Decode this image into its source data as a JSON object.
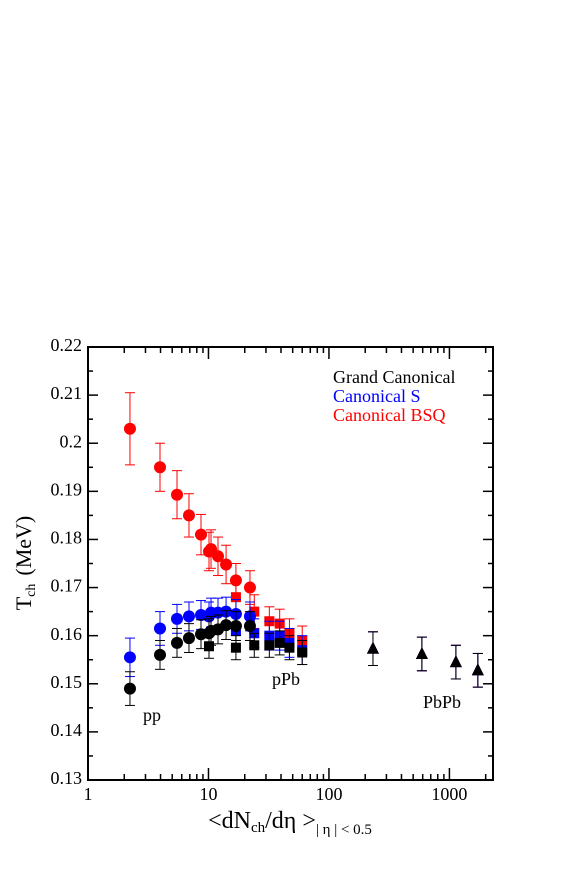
{
  "chart_data": {
    "type": "scatter",
    "x_scale": "log",
    "xlim": [
      1,
      2300
    ],
    "ylim": [
      0.13,
      0.22
    ],
    "xticks": [
      1,
      10,
      100,
      1000
    ],
    "yticks": [
      0.13,
      0.14,
      0.15,
      0.16,
      0.17,
      0.18,
      0.19,
      0.2,
      0.21,
      0.22
    ],
    "y_label": "T",
    "y_label_sub": "ch",
    "y_label_unit": "(MeV)",
    "x_label": "<dN",
    "x_label_sub": "ch",
    "x_label_mid": "/dη >",
    "x_label_range": "| η | < 0.5",
    "annotations": [
      "pp",
      "pPb",
      "PbPb"
    ],
    "legend": "top-right",
    "series": [
      {
        "name": "Canonical BSQ",
        "color": "#ff0000",
        "x": [
          2.23,
          3.96,
          5.48,
          6.89,
          8.67,
          10.1,
          10.5,
          12.0,
          14.0,
          16.9,
          22.1,
          16.9,
          24,
          32,
          39,
          47,
          60,
          232,
          591,
          1132,
          1722
        ],
        "values": [
          0.203,
          0.195,
          0.1893,
          0.185,
          0.181,
          0.1775,
          0.178,
          0.1765,
          0.1748,
          0.1715,
          0.17,
          0.168,
          0.165,
          0.163,
          0.1625,
          0.1605,
          0.159,
          0.1573,
          0.1562,
          0.1545,
          0.1528
        ],
        "errors": [
          0.0075,
          0.005,
          0.005,
          0.0045,
          0.0042,
          0.004,
          0.004,
          0.004,
          0.004,
          0.0035,
          0.0035,
          0.0035,
          0.0035,
          0.003,
          0.003,
          0.003,
          0.003,
          0.0035,
          0.0035,
          0.0035,
          0.0035
        ],
        "markers": [
          "circle",
          "circle",
          "circle",
          "circle",
          "circle",
          "circle",
          "circle",
          "circle",
          "circle",
          "circle",
          "circle",
          "square",
          "square",
          "square",
          "square",
          "square",
          "square",
          "triangle",
          "triangle",
          "triangle",
          "triangle"
        ]
      },
      {
        "name": "Canonical S",
        "color": "#0000ff",
        "x": [
          2.23,
          3.96,
          5.48,
          6.89,
          8.67,
          10.1,
          10.5,
          12.0,
          14.0,
          16.9,
          22.1,
          16.9,
          24,
          32,
          39,
          47,
          60,
          232,
          591,
          1132,
          1722
        ],
        "values": [
          0.1555,
          0.1615,
          0.1635,
          0.164,
          0.1643,
          0.164,
          0.1648,
          0.1648,
          0.165,
          0.1645,
          0.164,
          0.161,
          0.1605,
          0.16,
          0.16,
          0.1585,
          0.157,
          0.1573,
          0.1562,
          0.1545,
          0.1528
        ],
        "errors": [
          0.004,
          0.0035,
          0.003,
          0.003,
          0.003,
          0.003,
          0.003,
          0.003,
          0.003,
          0.003,
          0.003,
          0.003,
          0.003,
          0.003,
          0.003,
          0.003,
          0.003,
          0.0035,
          0.0035,
          0.0035,
          0.0035
        ],
        "markers": [
          "circle",
          "circle",
          "circle",
          "circle",
          "circle",
          "circle",
          "circle",
          "circle",
          "circle",
          "circle",
          "circle",
          "square",
          "square",
          "square",
          "square",
          "square",
          "square",
          "triangle",
          "triangle",
          "triangle",
          "triangle"
        ]
      },
      {
        "name": "Grand Canonical",
        "color": "#000000",
        "x": [
          2.23,
          3.96,
          5.48,
          6.89,
          8.67,
          10.1,
          10.5,
          12.0,
          14.0,
          16.9,
          22.1,
          10.1,
          16.9,
          24,
          32,
          39,
          47,
          60,
          232,
          591,
          1132,
          1722
        ],
        "values": [
          0.149,
          0.156,
          0.1585,
          0.1595,
          0.1603,
          0.1605,
          0.161,
          0.1613,
          0.1622,
          0.162,
          0.162,
          0.1578,
          0.1575,
          0.158,
          0.158,
          0.1585,
          0.1575,
          0.1565,
          0.1573,
          0.1562,
          0.1545,
          0.1528
        ],
        "errors": [
          0.0035,
          0.003,
          0.003,
          0.003,
          0.003,
          0.003,
          0.003,
          0.003,
          0.003,
          0.003,
          0.003,
          0.0025,
          0.0025,
          0.0025,
          0.0025,
          0.0025,
          0.0025,
          0.0025,
          0.0035,
          0.0035,
          0.0035,
          0.0035
        ],
        "markers": [
          "circle",
          "circle",
          "circle",
          "circle",
          "circle",
          "circle",
          "circle",
          "circle",
          "circle",
          "circle",
          "circle",
          "square",
          "square",
          "square",
          "square",
          "square",
          "square",
          "square",
          "triangle",
          "triangle",
          "triangle",
          "triangle"
        ]
      }
    ]
  }
}
